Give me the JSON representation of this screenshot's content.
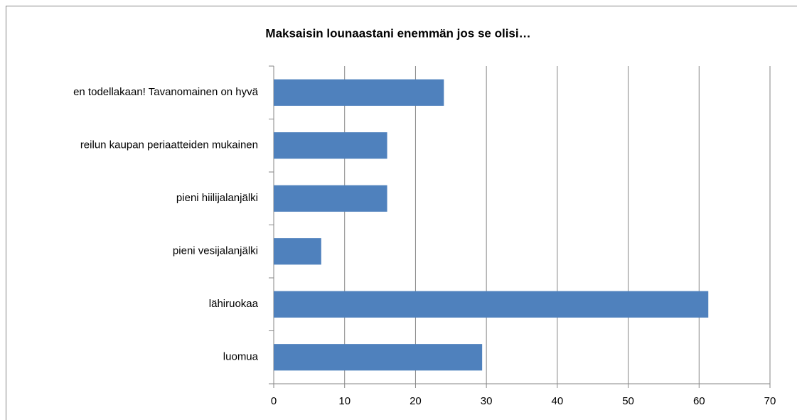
{
  "chart_data": {
    "type": "bar",
    "orientation": "horizontal",
    "title": "Maksaisin lounaastani enemmän jos se olisi…",
    "categories": [
      "en todellakaan! Tavanomainen on hyvä",
      "reilun kaupan periaatteiden mukainen",
      "pieni hiilijalanjälki",
      "pieni vesijalanjälki",
      "lähiruokaa",
      "luomua"
    ],
    "values": [
      24,
      16,
      16,
      6.7,
      61.3,
      29.4
    ],
    "color": "#4f81bd",
    "xlim": [
      0,
      70
    ],
    "xticks": [
      0,
      10,
      20,
      30,
      40,
      50,
      60,
      70
    ],
    "grid": true
  }
}
